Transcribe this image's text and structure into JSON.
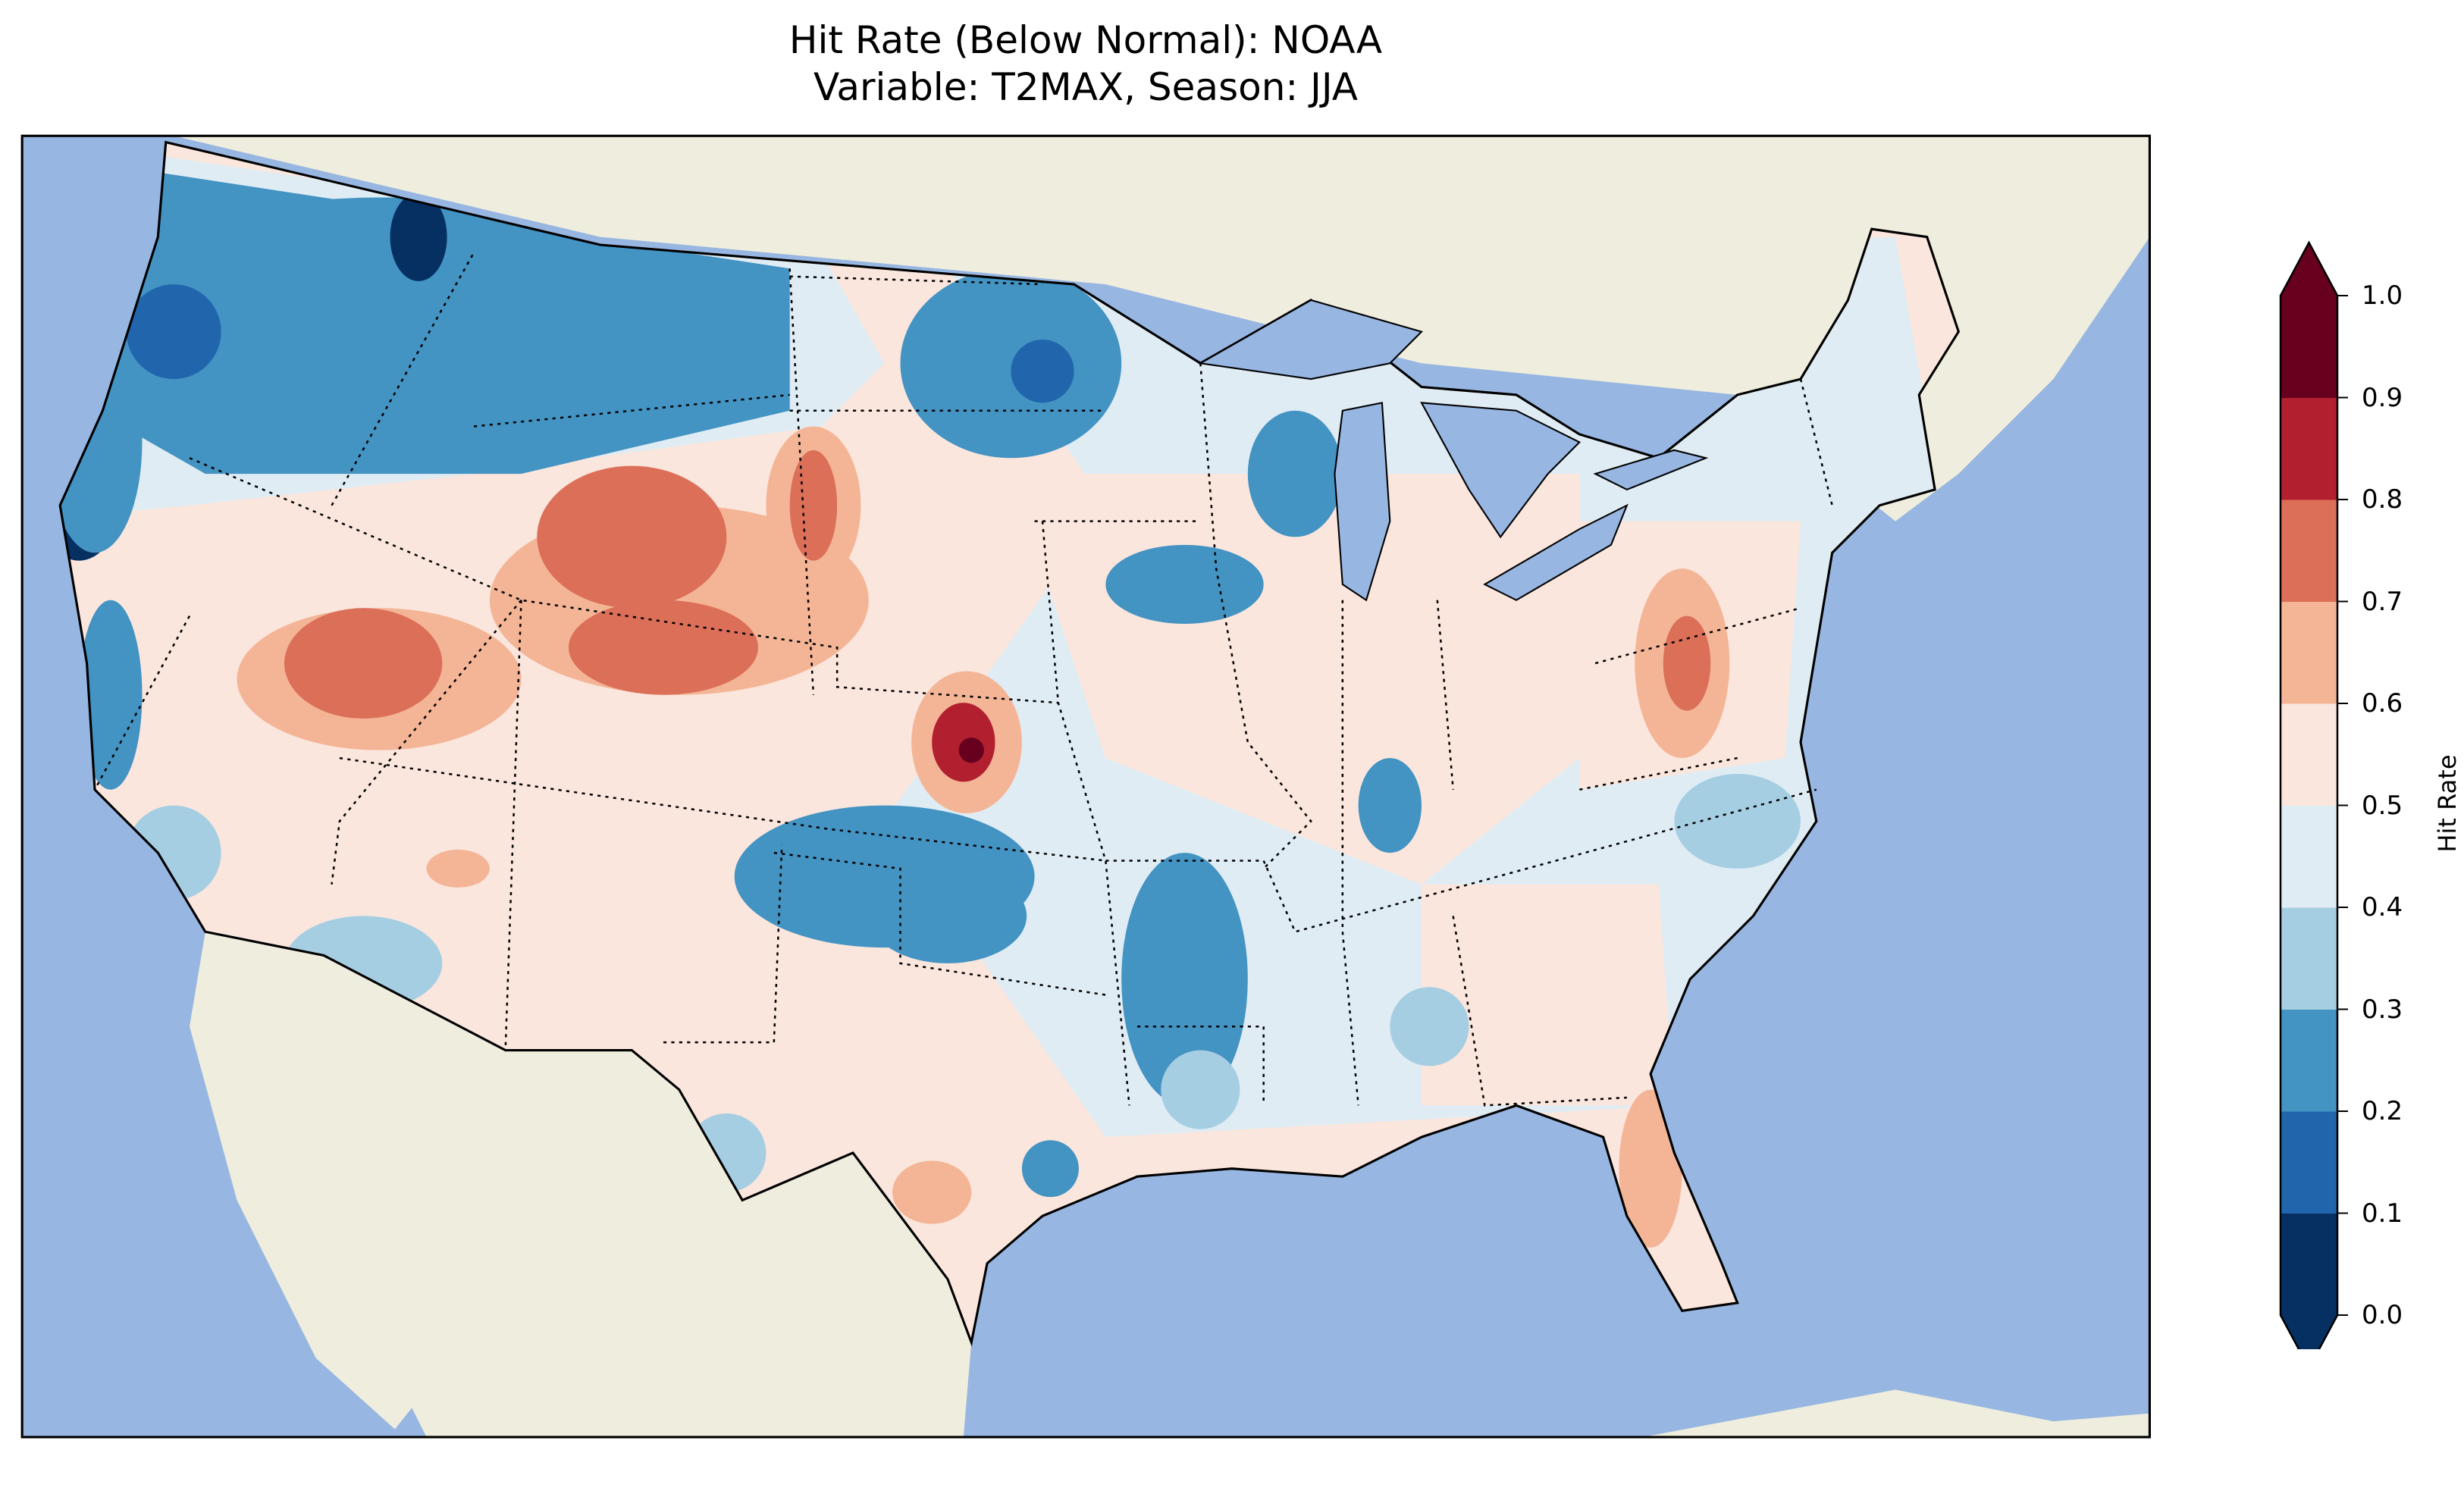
{
  "title": {
    "line1": "Hit Rate (Below Normal): NOAA",
    "line2": "Variable: T2MAX, Season: JJA"
  },
  "chart_data": {
    "type": "heatmap",
    "title": "Hit Rate (Below Normal): NOAA\nVariable: T2MAX, Season: JJA",
    "colorbar": {
      "label": "Hit Rate",
      "ticks": [
        "0.0",
        "0.1",
        "0.2",
        "0.3",
        "0.4",
        "0.5",
        "0.6",
        "0.7",
        "0.8",
        "0.9",
        "1.0"
      ],
      "range": [
        0.0,
        1.0
      ],
      "extend": "both",
      "levels": [
        {
          "min": 0.0,
          "max": 0.1,
          "color": "#053061"
        },
        {
          "min": 0.1,
          "max": 0.2,
          "color": "#2166ac"
        },
        {
          "min": 0.2,
          "max": 0.3,
          "color": "#4393c3"
        },
        {
          "min": 0.3,
          "max": 0.4,
          "color": "#a6cee3"
        },
        {
          "min": 0.4,
          "max": 0.5,
          "color": "#e0ecf3"
        },
        {
          "min": 0.5,
          "max": 0.6,
          "color": "#fae6dd"
        },
        {
          "min": 0.6,
          "max": 0.7,
          "color": "#f4b597"
        },
        {
          "min": 0.7,
          "max": 0.8,
          "color": "#dc6f58"
        },
        {
          "min": 0.8,
          "max": 0.9,
          "color": "#b2202f"
        },
        {
          "min": 0.9,
          "max": 1.0,
          "color": "#67001f"
        }
      ]
    },
    "map_colors": {
      "ocean": "#97b6e1",
      "land": "#efedde"
    }
  }
}
